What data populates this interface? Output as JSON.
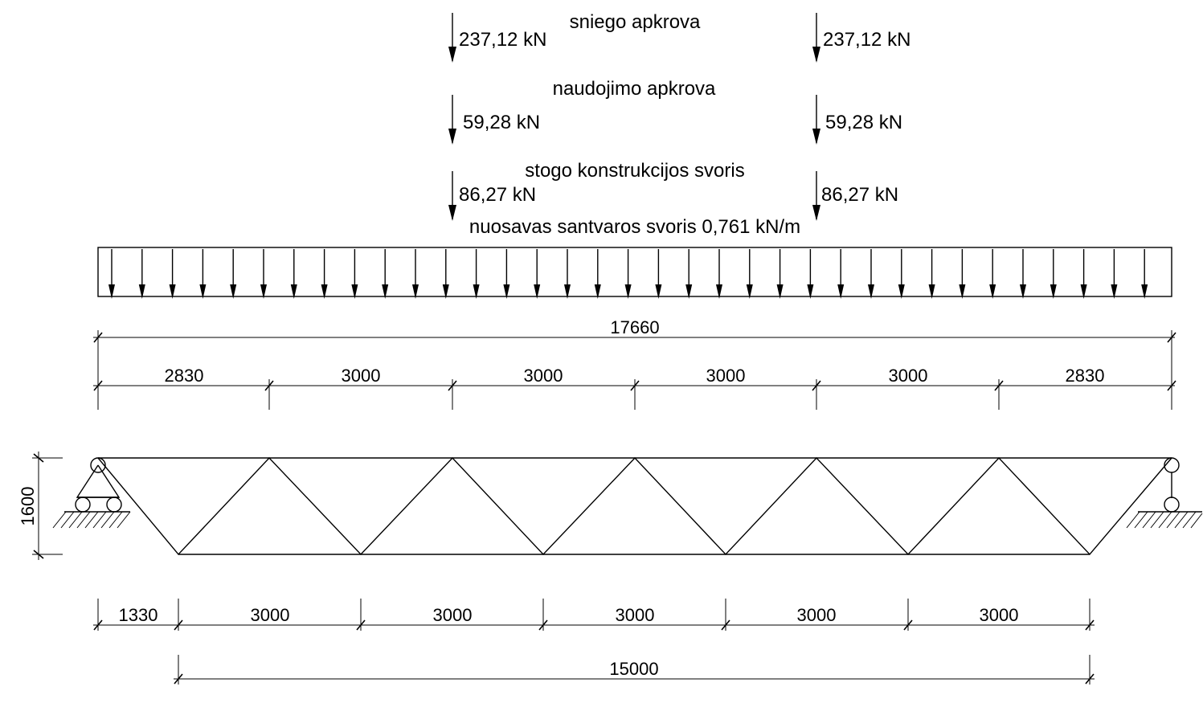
{
  "loads": {
    "snow": {
      "title": "sniego apkrova",
      "left_value": "237,12 kN",
      "right_value": "237,12 kN"
    },
    "live": {
      "title": "naudojimo apkrova",
      "left_value": "59,28 kN",
      "right_value": "59,28 kN"
    },
    "roof": {
      "title": "stogo konstrukcijos svoris",
      "left_value": "86,27 kN",
      "right_value": "86,27 kN"
    },
    "selfweight": {
      "title": "nuosavas santvaros svoris 0,761 kN/m"
    }
  },
  "dimensions": {
    "overall_top": "17660",
    "top_segments": [
      "2830",
      "3000",
      "3000",
      "3000",
      "3000",
      "2830"
    ],
    "height": "1600",
    "bottom_segments": [
      "1330",
      "3000",
      "3000",
      "3000",
      "3000",
      "3000"
    ],
    "overall_bottom": "15000"
  }
}
